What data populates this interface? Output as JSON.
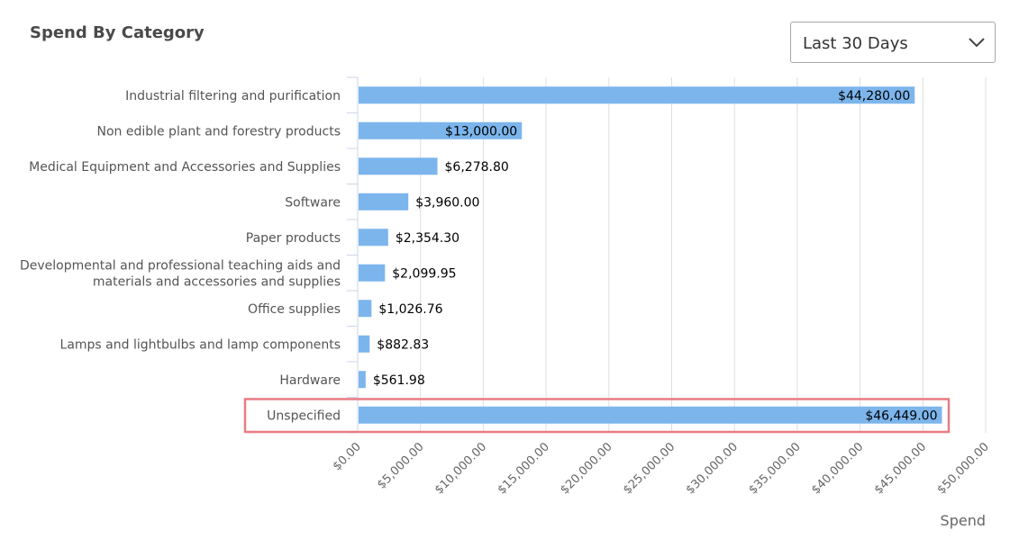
{
  "title": "Spend By Category",
  "range_selector": {
    "value": "Last 30 Days",
    "icon": "chevron-down-icon"
  },
  "chart_data": {
    "type": "bar",
    "orientation": "horizontal",
    "categories": [
      "Industrial filtering and purification",
      "Non edible plant and forestry products",
      "Medical Equipment and Accessories and Supplies",
      "Software",
      "Paper products",
      "Developmental and professional teaching aids and materials and accessories and supplies",
      "Office supplies",
      "Lamps and lightbulbs and lamp components",
      "Hardware",
      "Unspecified"
    ],
    "category_label_lines": [
      [
        "Industrial filtering and purification"
      ],
      [
        "Non edible plant and forestry products"
      ],
      [
        "Medical Equipment and Accessories and Supplies"
      ],
      [
        "Software"
      ],
      [
        "Paper products"
      ],
      [
        "Developmental and professional teaching aids and",
        "materials and accessories and supplies"
      ],
      [
        "Office supplies"
      ],
      [
        "Lamps and lightbulbs and lamp components"
      ],
      [
        "Hardware"
      ],
      [
        "Unspecified"
      ]
    ],
    "values": [
      44280,
      13000,
      6278.8,
      3960,
      2354.3,
      2099.95,
      1026.76,
      882.83,
      561.98,
      46449
    ],
    "value_labels": [
      "$44,280.00",
      "$13,000.00",
      "$6,278.80",
      "$3,960.00",
      "$2,354.30",
      "$2,099.95",
      "$1,026.76",
      "$882.83",
      "$561.98",
      "$46,449.00"
    ],
    "xlabel": "Spend",
    "xlim": [
      0,
      50000
    ],
    "x_ticks": [
      0,
      5000,
      10000,
      15000,
      20000,
      25000,
      30000,
      35000,
      40000,
      45000,
      50000
    ],
    "x_tick_labels": [
      "$0.00",
      "$5,000.00",
      "$10,000.00",
      "$15,000.00",
      "$20,000.00",
      "$25,000.00",
      "$30,000.00",
      "$35,000.00",
      "$40,000.00",
      "$45,000.00",
      "$50,000.00"
    ],
    "grid": true,
    "highlighted_category": "Unspecified",
    "bar_color": "#7cb5ec",
    "highlight_color": "#e87c84"
  }
}
